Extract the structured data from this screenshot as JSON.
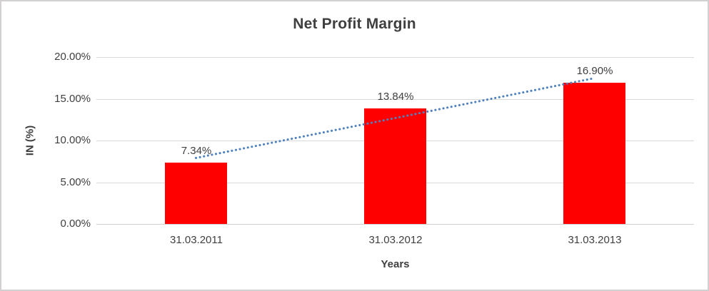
{
  "chart_data": {
    "type": "bar",
    "title": "Net Profit Margin",
    "xlabel": "Years",
    "ylabel": "IN (%)",
    "categories": [
      "31.03.2011",
      "31.03.2012",
      "31.03.2013"
    ],
    "series": [
      {
        "name": "Net Profit Margin",
        "values": [
          7.34,
          13.84,
          16.9
        ]
      }
    ],
    "data_labels": [
      "7.34%",
      "13.84%",
      "16.90%"
    ],
    "yticks": [
      {
        "value": 0,
        "label": "0.00%"
      },
      {
        "value": 5,
        "label": "5.00%"
      },
      {
        "value": 10,
        "label": "10.00%"
      },
      {
        "value": 15,
        "label": "15.00%"
      },
      {
        "value": 20,
        "label": "20.00%"
      }
    ],
    "ylim": [
      0,
      20
    ],
    "grid": true,
    "legend": "none",
    "trendline": {
      "type": "linear",
      "style": "dotted"
    },
    "colors": {
      "bar": "#ff0000",
      "trendline": "#4e81bd",
      "gridline": "#dadada",
      "axis_line": "#d0d0d0",
      "title_text": "#3f3f3f",
      "label_text": "#404040"
    }
  }
}
